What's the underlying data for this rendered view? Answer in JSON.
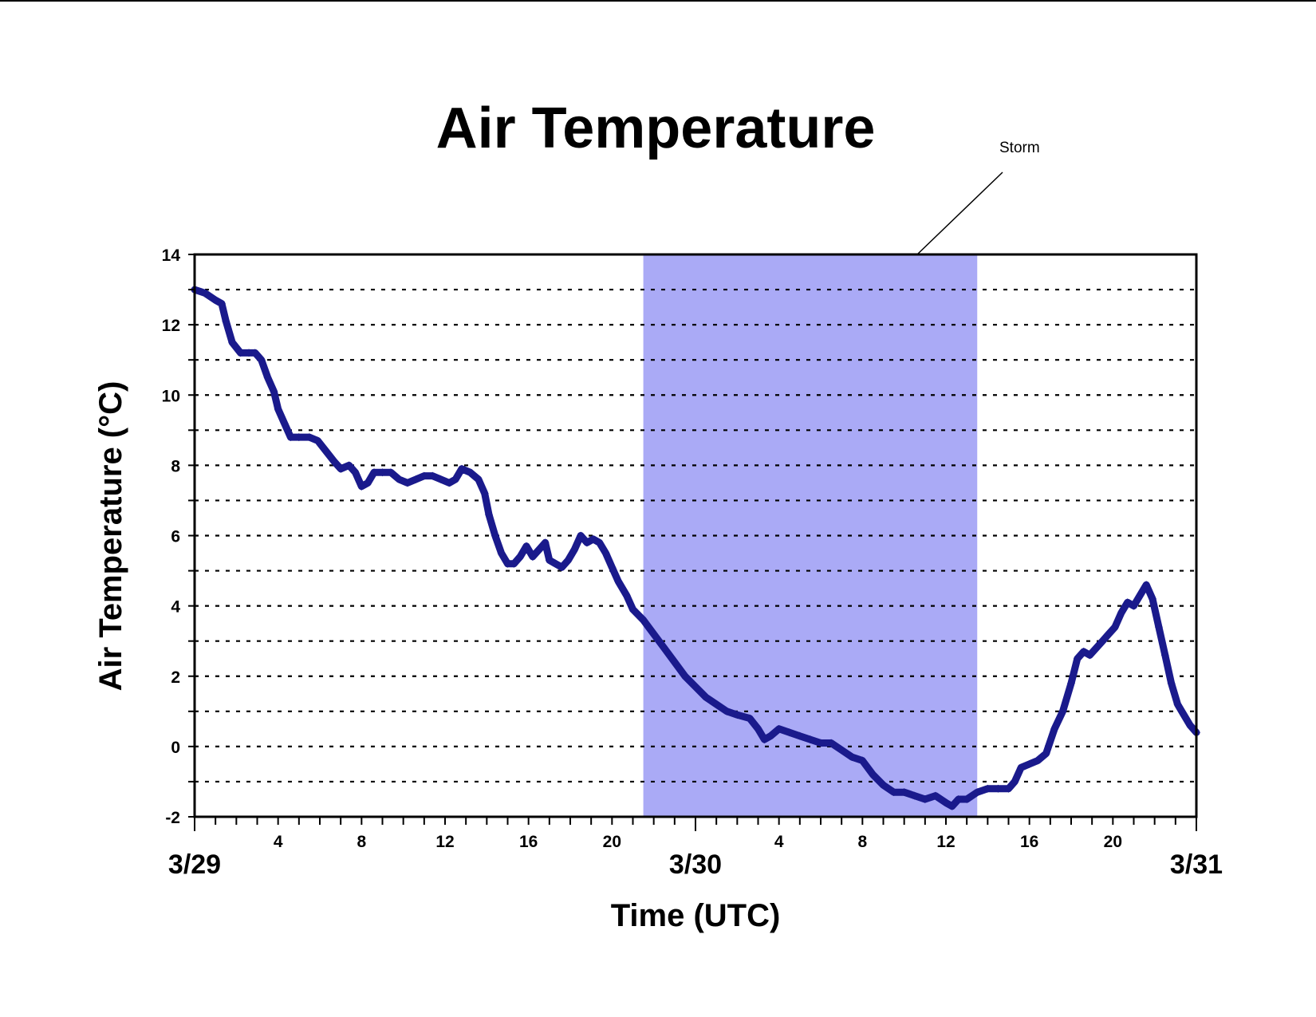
{
  "chart_data": {
    "type": "scatter",
    "title": "Air Temperature",
    "xlabel": "Time (UTC)",
    "ylabel": "Air Temperature (°C)",
    "ylim": [
      -2,
      14
    ],
    "yticks": [
      -2,
      0,
      2,
      4,
      6,
      8,
      10,
      12,
      14
    ],
    "ygrid_step": 1,
    "grid": "horizontal dotted",
    "xlim_hours": [
      0,
      48
    ],
    "x_unit": "hours since 3/29 00:00 UTC",
    "x_hour_ticks": [
      {
        "x": 4,
        "label": "4"
      },
      {
        "x": 8,
        "label": "8"
      },
      {
        "x": 12,
        "label": "12"
      },
      {
        "x": 16,
        "label": "16"
      },
      {
        "x": 20,
        "label": "20"
      },
      {
        "x": 28,
        "label": "4"
      },
      {
        "x": 32,
        "label": "8"
      },
      {
        "x": 36,
        "label": "12"
      },
      {
        "x": 40,
        "label": "16"
      },
      {
        "x": 44,
        "label": "20"
      }
    ],
    "x_date_ticks": [
      {
        "x": 0,
        "label": "3/29"
      },
      {
        "x": 24,
        "label": "3/30"
      },
      {
        "x": 48,
        "label": "3/31"
      }
    ],
    "shaded_region": {
      "x_start": 21.5,
      "x_end": 37.5,
      "label": "Storm",
      "color": "#aaaaf6"
    },
    "series": [
      {
        "color": "#1a1a8c",
        "marker": "diamond",
        "points": [
          [
            0.0,
            13.0
          ],
          [
            0.5,
            12.9
          ],
          [
            1.0,
            12.7
          ],
          [
            1.3,
            12.6
          ],
          [
            1.5,
            12.1
          ],
          [
            1.8,
            11.5
          ],
          [
            2.2,
            11.2
          ],
          [
            2.6,
            11.2
          ],
          [
            2.9,
            11.2
          ],
          [
            3.2,
            11.0
          ],
          [
            3.5,
            10.5
          ],
          [
            3.8,
            10.1
          ],
          [
            4.0,
            9.6
          ],
          [
            4.3,
            9.2
          ],
          [
            4.6,
            8.8
          ],
          [
            5.0,
            8.8
          ],
          [
            5.5,
            8.8
          ],
          [
            5.9,
            8.7
          ],
          [
            6.3,
            8.4
          ],
          [
            6.7,
            8.1
          ],
          [
            7.0,
            7.9
          ],
          [
            7.4,
            8.0
          ],
          [
            7.7,
            7.8
          ],
          [
            8.0,
            7.4
          ],
          [
            8.3,
            7.5
          ],
          [
            8.6,
            7.8
          ],
          [
            9.0,
            7.8
          ],
          [
            9.4,
            7.8
          ],
          [
            9.8,
            7.6
          ],
          [
            10.2,
            7.5
          ],
          [
            10.6,
            7.6
          ],
          [
            11.0,
            7.7
          ],
          [
            11.4,
            7.7
          ],
          [
            11.8,
            7.6
          ],
          [
            12.2,
            7.5
          ],
          [
            12.5,
            7.6
          ],
          [
            12.8,
            7.9
          ],
          [
            13.2,
            7.8
          ],
          [
            13.6,
            7.6
          ],
          [
            13.9,
            7.2
          ],
          [
            14.1,
            6.6
          ],
          [
            14.4,
            6.0
          ],
          [
            14.7,
            5.5
          ],
          [
            15.0,
            5.2
          ],
          [
            15.3,
            5.2
          ],
          [
            15.6,
            5.4
          ],
          [
            15.9,
            5.7
          ],
          [
            16.2,
            5.4
          ],
          [
            16.5,
            5.6
          ],
          [
            16.8,
            5.8
          ],
          [
            17.0,
            5.3
          ],
          [
            17.3,
            5.2
          ],
          [
            17.6,
            5.1
          ],
          [
            17.9,
            5.3
          ],
          [
            18.2,
            5.6
          ],
          [
            18.5,
            6.0
          ],
          [
            18.8,
            5.8
          ],
          [
            19.1,
            5.9
          ],
          [
            19.4,
            5.8
          ],
          [
            19.7,
            5.5
          ],
          [
            20.0,
            5.1
          ],
          [
            20.3,
            4.7
          ],
          [
            20.7,
            4.3
          ],
          [
            21.0,
            3.9
          ],
          [
            21.5,
            3.6
          ],
          [
            22.0,
            3.2
          ],
          [
            22.5,
            2.8
          ],
          [
            23.0,
            2.4
          ],
          [
            23.5,
            2.0
          ],
          [
            24.0,
            1.7
          ],
          [
            24.5,
            1.4
          ],
          [
            25.0,
            1.2
          ],
          [
            25.5,
            1.0
          ],
          [
            26.0,
            0.9
          ],
          [
            26.6,
            0.8
          ],
          [
            27.0,
            0.5
          ],
          [
            27.3,
            0.2
          ],
          [
            27.6,
            0.3
          ],
          [
            28.0,
            0.5
          ],
          [
            28.5,
            0.4
          ],
          [
            29.0,
            0.3
          ],
          [
            29.5,
            0.2
          ],
          [
            30.0,
            0.1
          ],
          [
            30.5,
            0.1
          ],
          [
            31.0,
            -0.1
          ],
          [
            31.5,
            -0.3
          ],
          [
            32.0,
            -0.4
          ],
          [
            32.5,
            -0.8
          ],
          [
            33.0,
            -1.1
          ],
          [
            33.5,
            -1.3
          ],
          [
            34.0,
            -1.3
          ],
          [
            34.5,
            -1.4
          ],
          [
            35.0,
            -1.5
          ],
          [
            35.5,
            -1.4
          ],
          [
            36.0,
            -1.6
          ],
          [
            36.3,
            -1.7
          ],
          [
            36.6,
            -1.5
          ],
          [
            37.0,
            -1.5
          ],
          [
            37.5,
            -1.3
          ],
          [
            38.0,
            -1.2
          ],
          [
            38.5,
            -1.2
          ],
          [
            39.0,
            -1.2
          ],
          [
            39.3,
            -1.0
          ],
          [
            39.6,
            -0.6
          ],
          [
            40.0,
            -0.5
          ],
          [
            40.4,
            -0.4
          ],
          [
            40.8,
            -0.2
          ],
          [
            41.2,
            0.5
          ],
          [
            41.6,
            1.0
          ],
          [
            42.0,
            1.8
          ],
          [
            42.3,
            2.5
          ],
          [
            42.6,
            2.7
          ],
          [
            42.9,
            2.6
          ],
          [
            43.2,
            2.8
          ],
          [
            43.5,
            3.0
          ],
          [
            43.8,
            3.2
          ],
          [
            44.1,
            3.4
          ],
          [
            44.4,
            3.8
          ],
          [
            44.7,
            4.1
          ],
          [
            45.0,
            4.0
          ],
          [
            45.3,
            4.3
          ],
          [
            45.6,
            4.6
          ],
          [
            45.9,
            4.2
          ],
          [
            46.2,
            3.4
          ],
          [
            46.5,
            2.6
          ],
          [
            46.8,
            1.8
          ],
          [
            47.1,
            1.2
          ],
          [
            47.4,
            0.9
          ],
          [
            47.7,
            0.6
          ],
          [
            48.0,
            0.4
          ]
        ]
      }
    ]
  }
}
